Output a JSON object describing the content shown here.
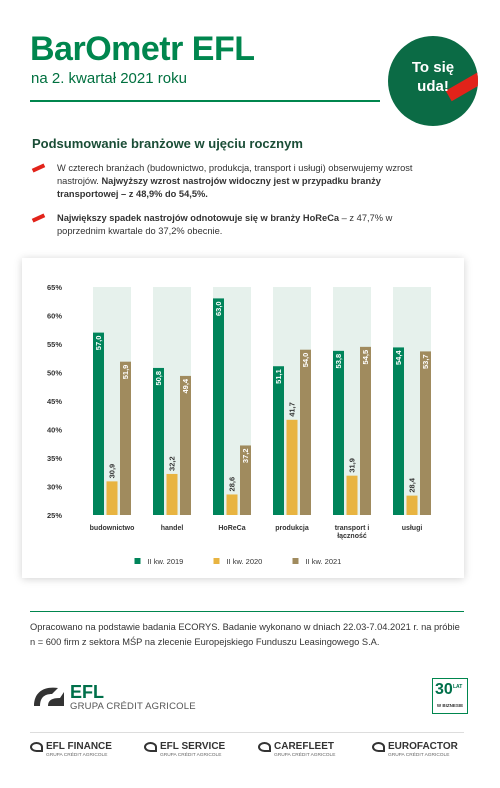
{
  "header": {
    "title": "BarOmetr EFL",
    "subtitle": "na 2. kwartał 2021 roku"
  },
  "badge": {
    "lines": [
      "To się",
      "uda!"
    ]
  },
  "section_title": "Podsumowanie branżowe w ujęciu rocznym",
  "bullets": [
    {
      "parts": [
        {
          "text": "W czterech branżach (budownictwo, produkcja, transport i usługi) obserwujemy wzrost nastrojów. ",
          "bold": false
        },
        {
          "text": "Najwyższy wzrost nastrojów widoczny jest w przypadku branży transportowej – z 48,9% do 54,5%.",
          "bold": true
        }
      ]
    },
    {
      "parts": [
        {
          "text": "Największy spadek nastrojów odnotowuje się w branży HoReCa",
          "bold": true
        },
        {
          "text": " – z 47,7% w poprzednim kwartale do 37,2% obecnie.",
          "bold": false
        }
      ]
    }
  ],
  "chart_data": {
    "type": "bar",
    "categories": [
      "budownictwo",
      "handel",
      "HoReCa",
      "produkcja",
      "transport i łączność",
      "usługi"
    ],
    "series": [
      {
        "name": "II kw. 2019",
        "color": "#00845a",
        "values": [
          57.0,
          50.8,
          63.0,
          51.1,
          53.8,
          54.4
        ],
        "value_labels": [
          "57,0",
          "50,8",
          "63,0",
          "51,1",
          "53,8",
          "54,4"
        ]
      },
      {
        "name": "II kw. 2020",
        "color": "#e8b441",
        "values": [
          30.9,
          32.2,
          28.6,
          41.7,
          31.9,
          28.4
        ],
        "value_labels": [
          "30,9",
          "32,2",
          "28,6",
          "41,7",
          "31,9",
          "28,4"
        ]
      },
      {
        "name": "II kw. 2021",
        "color": "#a08b5e",
        "values": [
          51.9,
          49.4,
          37.2,
          54.0,
          54.5,
          53.7
        ],
        "value_labels": [
          "51,9",
          "49,4",
          "37,2",
          "54,0",
          "54,5",
          "53,7"
        ]
      }
    ],
    "ylim": [
      25,
      65
    ],
    "yticks": [
      {
        "value": 25,
        "label": "25%"
      },
      {
        "value": 30,
        "label": "30%"
      },
      {
        "value": 35,
        "label": "35%"
      },
      {
        "value": 40,
        "label": "40%"
      },
      {
        "value": 45,
        "label": "45%"
      },
      {
        "value": 50,
        "label": "50%"
      },
      {
        "value": 55,
        "label": "55%"
      },
      {
        "value": 60,
        "label": "60%"
      },
      {
        "value": 65,
        "label": "65%"
      }
    ],
    "grid": false,
    "legend": "bottom"
  },
  "note": "Opracowano na podstawie badania ECORYS. Badanie wykonano w dniach 22.03-7.04.2021 r. na próbie n = 600 firm z sektora MŚP na zlecenie Europejskiego Funduszu Leasingowego S.A.",
  "footer": {
    "logo": {
      "name": "EFL",
      "group": "GRUPA CRÉDIT AGRICOLE"
    },
    "anniversary": {
      "number": "30",
      "unit": "LAT",
      "caption": "W BIZNESIE"
    },
    "brands": [
      {
        "name": "EFL FINANCE",
        "group": "GRUPA CRÉDIT AGRICOLE"
      },
      {
        "name": "EFL SERVICE",
        "group": "GRUPA CRÉDIT AGRICOLE"
      },
      {
        "name": "CAREFLEET",
        "group": "GRUPA CRÉDIT AGRICOLE"
      },
      {
        "name": "EUROFACTOR",
        "group": "GRUPA CRÉDIT AGRICOLE"
      }
    ]
  }
}
